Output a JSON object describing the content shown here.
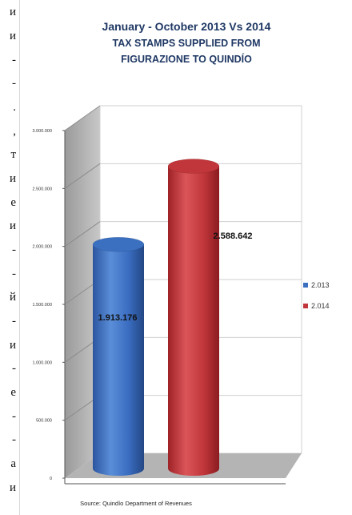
{
  "left_text": [
    "и",
    "и",
    "-",
    "-",
    ".",
    ",",
    "т",
    "и",
    "е",
    "и",
    "-",
    "-",
    "й",
    "-",
    "и",
    "-",
    "е",
    "-",
    "-",
    "а",
    "и"
  ],
  "chart_data": {
    "type": "bar",
    "title_lines": [
      "January - October 2013 Vs 2014",
      "TAX STAMPS SUPPLIED FROM",
      "FIGURAZIONE TO QUINDÍO"
    ],
    "y_ticks": [
      "0",
      "500.000",
      "1.000.000",
      "1.500.000",
      "2.000.000",
      "2.500.000",
      "3.000.000"
    ],
    "ylim": [
      0,
      3000000
    ],
    "grid": true,
    "legend_position": "right",
    "series": [
      {
        "name": "2.013",
        "value": 1913176,
        "label": "1.913.176",
        "color": "#3b6fbf"
      },
      {
        "name": "2.014",
        "value": 2588642,
        "label": "2.588.642",
        "color": "#c0363a"
      }
    ],
    "source": "Source: Quindío Department of Revenues"
  }
}
